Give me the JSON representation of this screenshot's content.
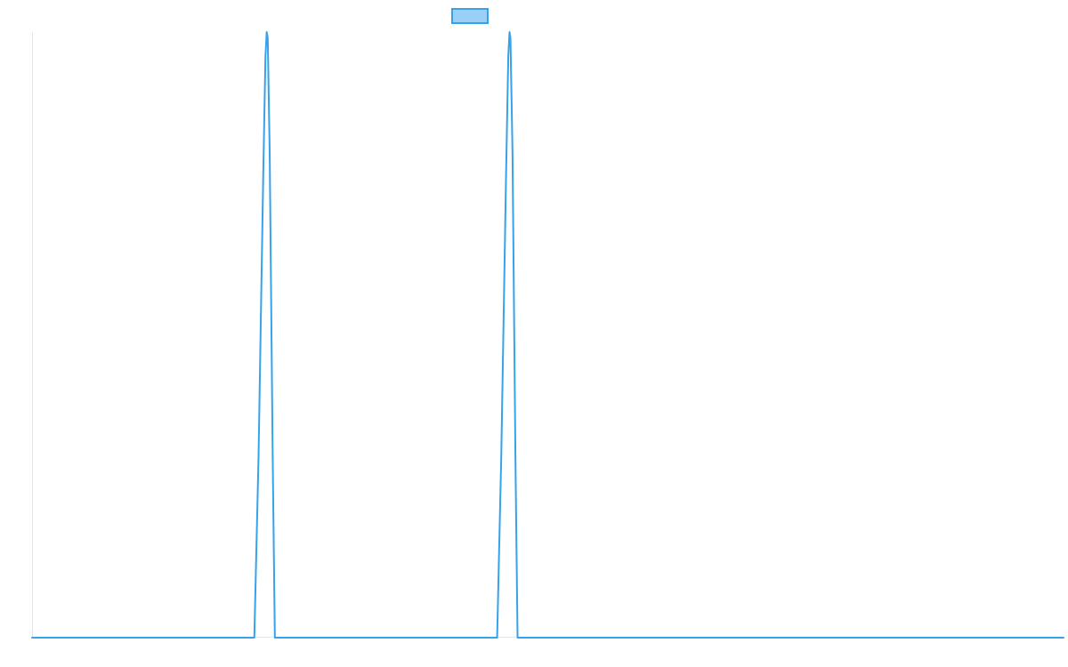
{
  "chart_data": {
    "type": "line",
    "title": "",
    "xlabel": "",
    "ylabel": "",
    "xlim": [
      0,
      1
    ],
    "ylim": [
      0,
      1
    ],
    "grid": false,
    "legend": {
      "placement": "top-center",
      "entries": [
        {
          "name": "",
          "color": "#36a2eb",
          "fill": "#9ad0f5"
        }
      ]
    },
    "series": [
      {
        "name": "",
        "color": "#36a2eb",
        "x": [
          0.0,
          0.2155,
          0.2196,
          0.2241,
          0.2263,
          0.2275,
          0.2285,
          0.2304,
          0.2333,
          0.2354,
          0.2394,
          0.2449,
          0.4509,
          0.4549,
          0.4595,
          0.4617,
          0.4629,
          0.4638,
          0.4658,
          0.4686,
          0.4707,
          0.4748,
          0.4803,
          1.0
        ],
        "y": [
          0.0,
          0.0,
          0.3,
          0.76,
          0.96,
          1.0,
          0.99,
          0.8,
          0.3,
          0.0,
          0.0,
          0.0,
          0.0,
          0.3,
          0.76,
          0.96,
          1.0,
          0.99,
          0.8,
          0.3,
          0.0,
          0.0,
          0.0,
          0.0
        ]
      }
    ]
  }
}
